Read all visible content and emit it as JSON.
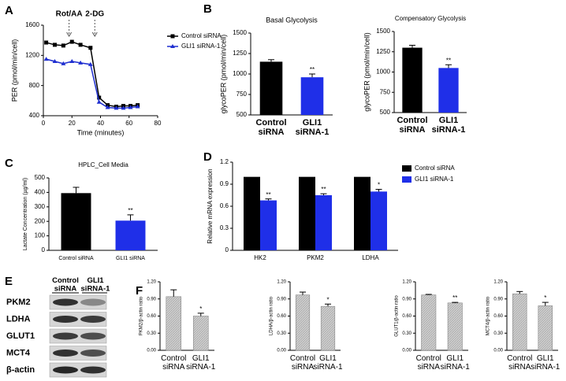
{
  "chart_data": [
    {
      "type": "line",
      "panel": "A",
      "ylabel": "PER (pmol/min/cell)",
      "xlabel": "Time (minutes)",
      "x": [
        2,
        8,
        14,
        20,
        26,
        33,
        39,
        45,
        51,
        56,
        61,
        66
      ],
      "series": [
        {
          "name": "Control siRNA",
          "color": "#000000",
          "marker": "square",
          "values": [
            1370,
            1340,
            1330,
            1380,
            1340,
            1300,
            640,
            540,
            520,
            530,
            530,
            540
          ]
        },
        {
          "name": "GLI1 siRNA-1",
          "color": "#1f2fd0",
          "marker": "triangle",
          "values": [
            1150,
            1120,
            1090,
            1120,
            1100,
            1080,
            580,
            510,
            500,
            500,
            510,
            520
          ]
        }
      ],
      "annotations": [
        {
          "text": "Rot/AA",
          "x": 18
        },
        {
          "text": "2-DG",
          "x": 36
        }
      ],
      "xlim": [
        0,
        80
      ],
      "xticks": [
        0,
        20,
        40,
        60,
        80
      ],
      "ylim": [
        400,
        1600
      ],
      "yticks": [
        400,
        800,
        1200,
        1600
      ]
    },
    {
      "type": "bar",
      "panel": "B",
      "title": "Basal Glycolysis",
      "ylabel": "glycoPER (pmol/min/cell)",
      "categories": [
        "Control\nsiRNA",
        "GLI1\nsiRNA-1"
      ],
      "values": [
        1150,
        960
      ],
      "errors": [
        25,
        40
      ],
      "sig": [
        null,
        "**"
      ],
      "colors": [
        "#000000",
        "#1f2fe8"
      ],
      "ylim": [
        500,
        1500
      ],
      "yticks": [
        500,
        750,
        1000,
        1250,
        1500
      ]
    },
    {
      "type": "bar",
      "title": "Compensatory Glycolysis",
      "ylabel": "glycoPER (pmol/min/cell)",
      "categories": [
        "Control\nsiRNA",
        "GLI1\nsiRNA-1"
      ],
      "values": [
        1300,
        1050
      ],
      "errors": [
        30,
        40
      ],
      "sig": [
        null,
        "**"
      ],
      "colors": [
        "#000000",
        "#1f2fe8"
      ],
      "ylim": [
        500,
        1500
      ],
      "yticks": [
        500,
        750,
        1000,
        1250,
        1500
      ]
    },
    {
      "type": "bar",
      "panel": "C",
      "title": "HPLC_Cell Media",
      "ylabel": "Lactate Concentration (µg/ml)",
      "categories": [
        "Control siRNA",
        "GLI1 siRNA"
      ],
      "values": [
        395,
        205
      ],
      "errors": [
        40,
        40
      ],
      "sig": [
        null,
        "**"
      ],
      "colors": [
        "#000000",
        "#1f2fe8"
      ],
      "ylim": [
        0,
        500
      ],
      "yticks": [
        0,
        100,
        200,
        300,
        400,
        500
      ]
    },
    {
      "type": "grouped",
      "panel": "D",
      "ylabel": "Relative mRNA expression",
      "categories": [
        "HK2",
        "PKM2",
        "LDHA"
      ],
      "series": [
        {
          "name": "Control siRNA",
          "color": "#000000",
          "values": [
            1,
            1,
            1
          ]
        },
        {
          "name": "GLI1 siRNA-1",
          "color": "#1f2fe8",
          "values": [
            0.68,
            0.75,
            0.8
          ],
          "errors": [
            0.02,
            0.02,
            0.03
          ],
          "sig": [
            "**",
            "**",
            "*"
          ]
        }
      ],
      "ylim": [
        0,
        1.2
      ],
      "yticks": [
        0,
        0.3,
        0.6,
        0.9,
        1.2
      ]
    },
    {
      "type": "blot",
      "panel": "E",
      "lanes": [
        "Control\nsiRNA",
        "GLI1\nsiRNA-1"
      ],
      "rows": [
        "PKM2",
        "LDHA",
        "GLUT1",
        "MCT4",
        "β-actin"
      ]
    },
    {
      "type": "bar",
      "panel": "F",
      "ylabel": "PKM2/β-actin ratio",
      "categories": [
        "Control\nsiRNA",
        "GLI1\nsiRNA-1"
      ],
      "values": [
        0.94,
        0.6
      ],
      "errors": [
        0.12,
        0.05
      ],
      "sig": [
        null,
        "*"
      ],
      "color": "#c4c4c4",
      "ylim": [
        0,
        1.2
      ],
      "yticks": [
        {
          "value": 0,
          "label": "0.00"
        },
        {
          "value": 0.3,
          "label": "0.30"
        },
        {
          "value": 0.6,
          "label": "0.60"
        },
        {
          "value": 0.9,
          "label": "0.90"
        },
        {
          "value": 1.2,
          "label": "1.20"
        }
      ]
    },
    {
      "type": "bar",
      "ylabel": "LDHA/β-actin ratio",
      "categories": [
        "Control\nsiRNA",
        "GLI1\nsiRNA-1"
      ],
      "values": [
        0.97,
        0.77
      ],
      "errors": [
        0.05,
        0.04
      ],
      "sig": [
        null,
        "*"
      ],
      "color": "#c4c4c4",
      "ylim": [
        0,
        1.2
      ],
      "yticks": [
        {
          "value": 0,
          "label": "0.00"
        },
        {
          "value": 0.3,
          "label": "0.30"
        },
        {
          "value": 0.6,
          "label": "0.60"
        },
        {
          "value": 0.9,
          "label": "0.90"
        },
        {
          "value": 1.2,
          "label": "1.20"
        }
      ]
    },
    {
      "type": "bar",
      "ylabel": "GLUT1/β-actin ratio",
      "categories": [
        "Control\nsiRNA",
        "GLI1\nsiRNA-1"
      ],
      "values": [
        0.97,
        0.83
      ],
      "errors": [
        0.01,
        0.01
      ],
      "sig": [
        null,
        "**"
      ],
      "color": "#c4c4c4",
      "ylim": [
        0,
        1.2
      ],
      "yticks": [
        {
          "value": 0,
          "label": "0.00"
        },
        {
          "value": 0.3,
          "label": "0.30"
        },
        {
          "value": 0.6,
          "label": "0.60"
        },
        {
          "value": 0.9,
          "label": "0.90"
        },
        {
          "value": 1.2,
          "label": "1.20"
        }
      ]
    },
    {
      "type": "bar",
      "ylabel": "MCT4/β-actin ratio",
      "categories": [
        "Control\nsiRNA",
        "GLI1\nsiRNA-1"
      ],
      "values": [
        0.99,
        0.78
      ],
      "errors": [
        0.04,
        0.06
      ],
      "sig": [
        null,
        "*"
      ],
      "color": "#c4c4c4",
      "ylim": [
        0,
        1.2
      ],
      "yticks": [
        {
          "value": 0,
          "label": "0.00"
        },
        {
          "value": 0.3,
          "label": "0.30"
        },
        {
          "value": 0.6,
          "label": "0.60"
        },
        {
          "value": 0.9,
          "label": "0.90"
        },
        {
          "value": 1.2,
          "label": "1.20"
        }
      ]
    }
  ]
}
